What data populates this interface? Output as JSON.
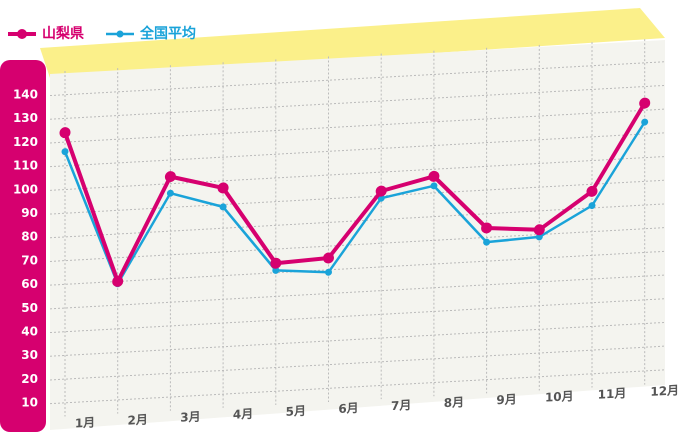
{
  "chart_data": {
    "type": "line",
    "categories": [
      "1月",
      "2月",
      "3月",
      "4月",
      "5月",
      "6月",
      "7月",
      "8月",
      "9月",
      "10月",
      "11月",
      "12月"
    ],
    "series": [
      {
        "name": "山梨県",
        "color": "#d6006f",
        "values": [
          124,
          60,
          103,
          97,
          64,
          65,
          92,
          97,
          74,
          72,
          87,
          123
        ]
      },
      {
        "name": "全国平均",
        "color": "#1aa3d9",
        "values": [
          116,
          59,
          96,
          89,
          61,
          59,
          89,
          93,
          68,
          69,
          81,
          115
        ]
      }
    ],
    "ylim": [
      0,
      150
    ],
    "yticks": [
      10,
      20,
      30,
      40,
      50,
      60,
      70,
      80,
      90,
      100,
      110,
      120,
      130,
      140
    ],
    "grid": true
  }
}
